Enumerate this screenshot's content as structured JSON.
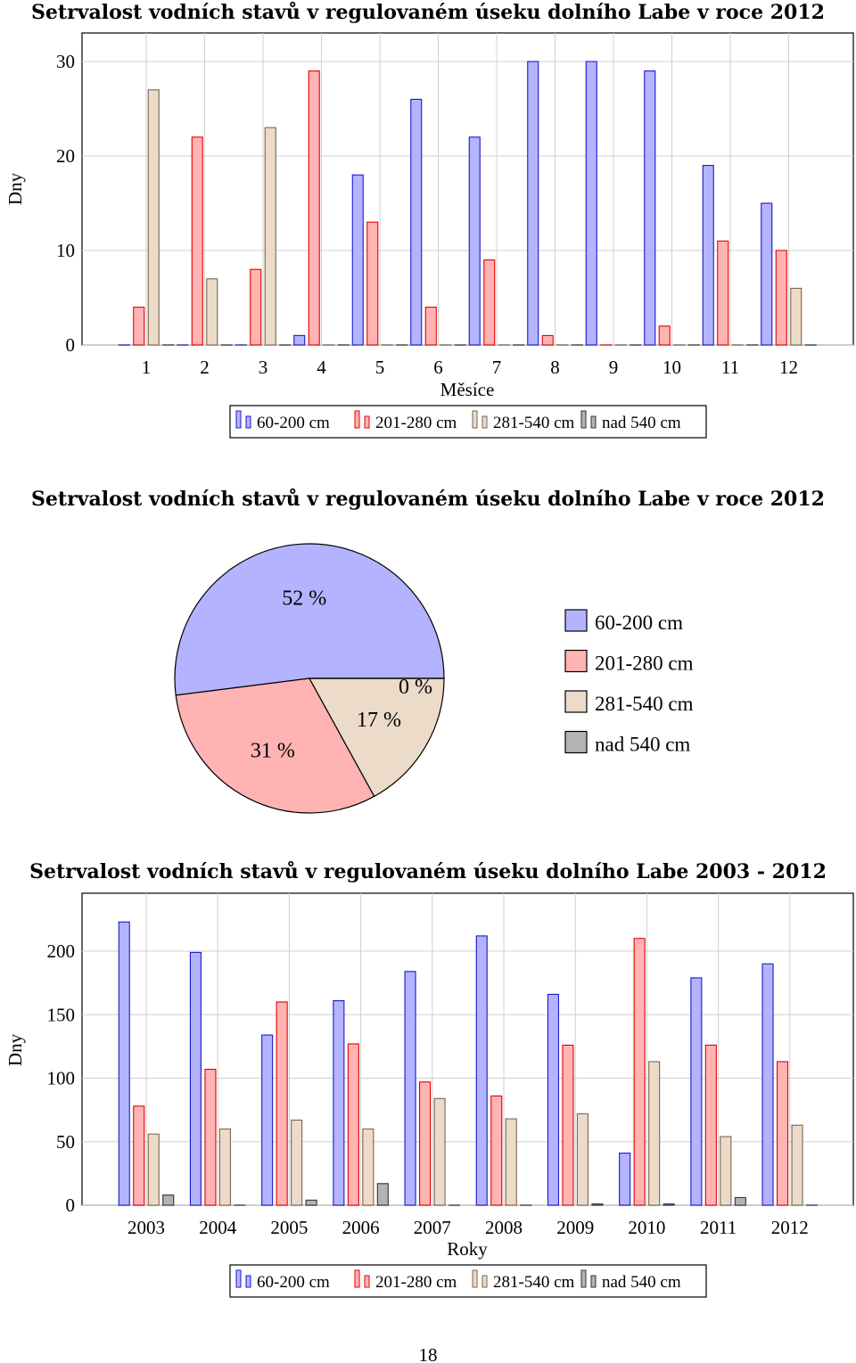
{
  "page_number": "18",
  "colors": {
    "60-200": {
      "fill": "#b3b3ff",
      "stroke": "#1a1acc"
    },
    "201-280": {
      "fill": "#ffb3b3",
      "stroke": "#e60000"
    },
    "281-540": {
      "fill": "#ebdbc8",
      "stroke": "#7a6650"
    },
    "nad540": {
      "fill": "#b3b3b3",
      "stroke": "#333333"
    }
  },
  "chart_data": [
    {
      "type": "bar",
      "title": "Setrvalost vodních stavů v regulovaném úseku dolního Labe v roce 2012",
      "xlabel": "Měsíce",
      "ylabel": "Dny",
      "ylim": [
        0,
        30
      ],
      "yticks": [
        "0",
        "10",
        "20",
        "30"
      ],
      "grid": true,
      "legend_position": "bottom",
      "categories": [
        "1",
        "2",
        "3",
        "4",
        "5",
        "6",
        "7",
        "8",
        "9",
        "10",
        "11",
        "12"
      ],
      "series": [
        {
          "name": "60-200 cm",
          "values": [
            0,
            0,
            0,
            1,
            18,
            26,
            22,
            30,
            30,
            29,
            19,
            15
          ]
        },
        {
          "name": "201-280 cm",
          "values": [
            4,
            22,
            8,
            29,
            13,
            4,
            9,
            1,
            0,
            2,
            11,
            10
          ]
        },
        {
          "name": "281-540 cm",
          "values": [
            27,
            7,
            23,
            0,
            0,
            0,
            0,
            0,
            0,
            0,
            0,
            6
          ]
        },
        {
          "name": "nad 540 cm",
          "values": [
            0,
            0,
            0,
            0,
            0,
            0,
            0,
            0,
            0,
            0,
            0,
            0
          ]
        }
      ]
    },
    {
      "type": "pie",
      "title": "Setrvalost vodních stavů v regulovaném úseku dolního Labe v roce 2012",
      "legend_position": "right",
      "slices": [
        {
          "name": "60-200 cm",
          "value": 52,
          "label": "52 %"
        },
        {
          "name": "201-280 cm",
          "value": 31,
          "label": "31 %"
        },
        {
          "name": "281-540 cm",
          "value": 17,
          "label": "17 %"
        },
        {
          "name": "nad 540 cm",
          "value": 0,
          "label": "0 %"
        }
      ]
    },
    {
      "type": "bar",
      "title": "Setrvalost vodních stavů v regulovaném úseku dolního Labe 2003 - 2012",
      "xlabel": "Roky",
      "ylabel": "Dny",
      "ylim": [
        0,
        200
      ],
      "yticks": [
        "0",
        "50",
        "100",
        "150",
        "200"
      ],
      "grid": true,
      "legend_position": "bottom",
      "categories": [
        "2003",
        "2004",
        "2005",
        "2006",
        "2007",
        "2008",
        "2009",
        "2010",
        "2011",
        "2012"
      ],
      "series": [
        {
          "name": "60-200 cm",
          "values": [
            223,
            199,
            134,
            161,
            184,
            212,
            166,
            41,
            179,
            190
          ]
        },
        {
          "name": "201-280 cm",
          "values": [
            78,
            107,
            160,
            127,
            97,
            86,
            126,
            210,
            126,
            113
          ]
        },
        {
          "name": "281-540 cm",
          "values": [
            56,
            60,
            67,
            60,
            84,
            68,
            72,
            113,
            54,
            63
          ]
        },
        {
          "name": "nad 540 cm",
          "values": [
            8,
            0,
            4,
            17,
            0,
            0,
            1,
            1,
            6,
            0
          ]
        }
      ]
    }
  ]
}
